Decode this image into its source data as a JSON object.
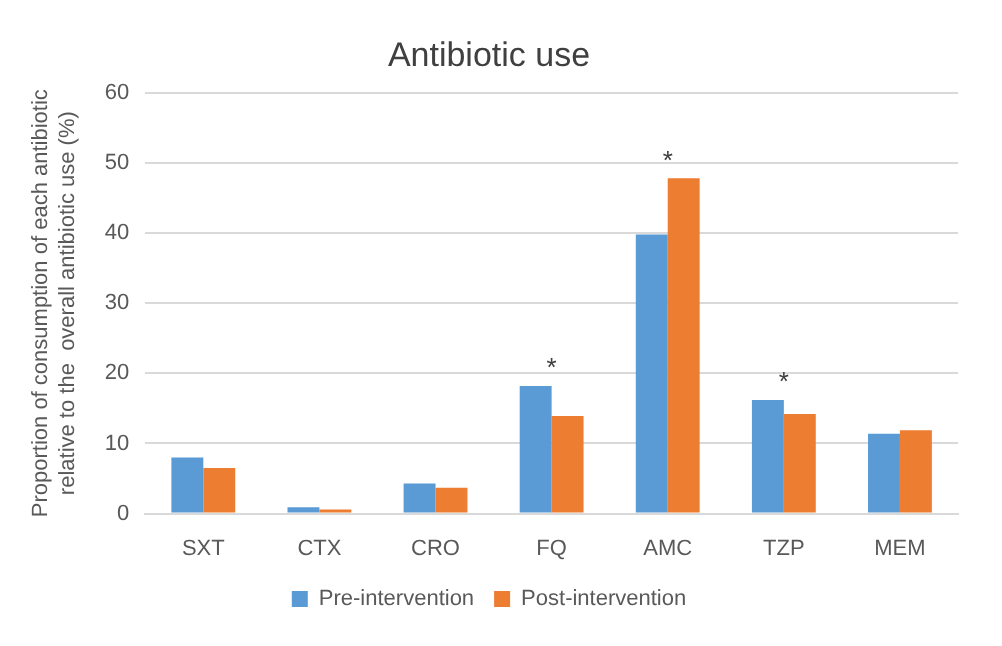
{
  "chart_data": {
    "type": "bar",
    "title": "Antibiotic use",
    "ylabel": "Proportion of consumption of each antibiotic\nrelative to the  overall antibiotic use (%)",
    "categories": [
      "SXT",
      "CTX",
      "CRO",
      "FQ",
      "AMC",
      "TZP",
      "MEM"
    ],
    "series": [
      {
        "name": "Pre-intervention",
        "color": "#5b9bd5",
        "values": [
          8.0,
          0.9,
          4.3,
          18.2,
          39.8,
          16.2,
          11.4
        ]
      },
      {
        "name": "Post-intervention",
        "color": "#ed7d31",
        "values": [
          6.5,
          0.6,
          3.7,
          13.9,
          47.8,
          14.2,
          11.9
        ]
      }
    ],
    "ylim": [
      0,
      60
    ],
    "yticks": [
      0,
      10,
      20,
      30,
      40,
      50,
      60
    ],
    "grid": "y",
    "legend": "bottom",
    "annotations": [
      {
        "text": "*",
        "x": "FQ",
        "y": 18.2
      },
      {
        "text": "*",
        "x": "AMC",
        "y": 47.8
      },
      {
        "text": "*",
        "x": "TZP",
        "y": 16.2
      }
    ]
  }
}
